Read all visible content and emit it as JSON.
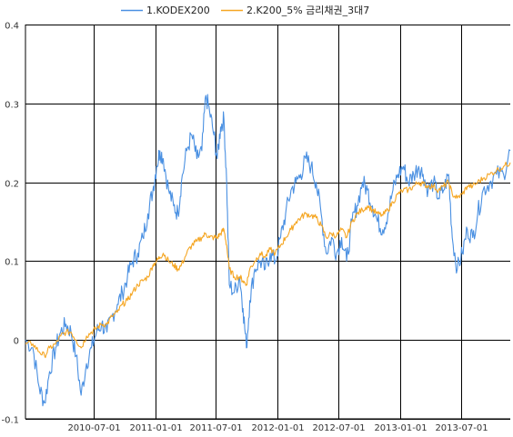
{
  "chart_data": {
    "type": "line",
    "grid": true,
    "legend_placement": "top-center",
    "ylim": [
      -0.1,
      0.4
    ],
    "xlim": [
      "2009-12-10",
      "2013-11-25"
    ],
    "yticks": [
      {
        "value": 0.4,
        "label": "0.4"
      },
      {
        "value": 0.3,
        "label": "0.3"
      },
      {
        "value": 0.2,
        "label": "0.2"
      },
      {
        "value": 0.1,
        "label": "0.1"
      },
      {
        "value": 0.0,
        "label": "0"
      },
      {
        "value": -0.1,
        "label": "-0.1"
      }
    ],
    "xticks": [
      "2010-07-01",
      "2011-01-01",
      "2011-07-01",
      "2012-01-01",
      "2012-07-01",
      "2013-01-01",
      "2013-07-01"
    ],
    "series": [
      {
        "name": "1.KODEX200",
        "color": "#4a90e2",
        "points": [
          [
            "2009-12-10",
            0.0
          ],
          [
            "2010-01-01",
            -0.01
          ],
          [
            "2010-01-20",
            -0.06
          ],
          [
            "2010-02-05",
            -0.08
          ],
          [
            "2010-02-20",
            -0.04
          ],
          [
            "2010-03-10",
            -0.01
          ],
          [
            "2010-03-25",
            0.01
          ],
          [
            "2010-04-10",
            0.02
          ],
          [
            "2010-04-25",
            0.01
          ],
          [
            "2010-05-10",
            -0.02
          ],
          [
            "2010-05-25",
            -0.07
          ],
          [
            "2010-06-10",
            -0.03
          ],
          [
            "2010-06-25",
            -0.01
          ],
          [
            "2010-07-10",
            0.01
          ],
          [
            "2010-07-25",
            0.02
          ],
          [
            "2010-08-10",
            0.01
          ],
          [
            "2010-08-25",
            0.03
          ],
          [
            "2010-09-10",
            0.045
          ],
          [
            "2010-09-25",
            0.06
          ],
          [
            "2010-10-10",
            0.08
          ],
          [
            "2010-10-25",
            0.1
          ],
          [
            "2010-11-10",
            0.11
          ],
          [
            "2010-11-25",
            0.13
          ],
          [
            "2010-12-10",
            0.16
          ],
          [
            "2010-12-25",
            0.19
          ],
          [
            "2011-01-05",
            0.22
          ],
          [
            "2011-01-15",
            0.24
          ],
          [
            "2011-01-25",
            0.23
          ],
          [
            "2011-02-10",
            0.19
          ],
          [
            "2011-02-25",
            0.17
          ],
          [
            "2011-03-10",
            0.16
          ],
          [
            "2011-03-20",
            0.2
          ],
          [
            "2011-04-05",
            0.24
          ],
          [
            "2011-04-20",
            0.26
          ],
          [
            "2011-05-05",
            0.23
          ],
          [
            "2011-05-20",
            0.24
          ],
          [
            "2011-06-01",
            0.31
          ],
          [
            "2011-06-12",
            0.29
          ],
          [
            "2011-06-25",
            0.26
          ],
          [
            "2011-07-05",
            0.23
          ],
          [
            "2011-07-15",
            0.27
          ],
          [
            "2011-07-25",
            0.28
          ],
          [
            "2011-08-02",
            0.2
          ],
          [
            "2011-08-10",
            0.07
          ],
          [
            "2011-08-25",
            0.06
          ],
          [
            "2011-09-10",
            0.08
          ],
          [
            "2011-09-20",
            0.04
          ],
          [
            "2011-09-30",
            -0.01
          ],
          [
            "2011-10-10",
            0.05
          ],
          [
            "2011-10-25",
            0.09
          ],
          [
            "2011-11-10",
            0.1
          ],
          [
            "2011-11-25",
            0.09
          ],
          [
            "2011-12-10",
            0.11
          ],
          [
            "2011-12-25",
            0.1
          ],
          [
            "2012-01-10",
            0.13
          ],
          [
            "2012-01-25",
            0.16
          ],
          [
            "2012-02-10",
            0.19
          ],
          [
            "2012-02-25",
            0.2
          ],
          [
            "2012-03-10",
            0.21
          ],
          [
            "2012-03-25",
            0.23
          ],
          [
            "2012-04-10",
            0.22
          ],
          [
            "2012-04-25",
            0.2
          ],
          [
            "2012-05-10",
            0.16
          ],
          [
            "2012-05-25",
            0.11
          ],
          [
            "2012-06-10",
            0.13
          ],
          [
            "2012-06-25",
            0.11
          ],
          [
            "2012-07-10",
            0.13
          ],
          [
            "2012-07-25",
            0.1
          ],
          [
            "2012-08-10",
            0.15
          ],
          [
            "2012-08-25",
            0.17
          ],
          [
            "2012-09-10",
            0.2
          ],
          [
            "2012-09-25",
            0.19
          ],
          [
            "2012-10-10",
            0.17
          ],
          [
            "2012-10-25",
            0.15
          ],
          [
            "2012-11-10",
            0.14
          ],
          [
            "2012-11-25",
            0.16
          ],
          [
            "2012-12-10",
            0.19
          ],
          [
            "2012-12-25",
            0.21
          ],
          [
            "2013-01-10",
            0.22
          ],
          [
            "2013-01-25",
            0.2
          ],
          [
            "2013-02-10",
            0.21
          ],
          [
            "2013-02-25",
            0.22
          ],
          [
            "2013-03-10",
            0.21
          ],
          [
            "2013-03-25",
            0.19
          ],
          [
            "2013-04-10",
            0.2
          ],
          [
            "2013-04-25",
            0.18
          ],
          [
            "2013-05-10",
            0.19
          ],
          [
            "2013-05-25",
            0.21
          ],
          [
            "2013-06-05",
            0.13
          ],
          [
            "2013-06-20",
            0.09
          ],
          [
            "2013-07-05",
            0.11
          ],
          [
            "2013-07-20",
            0.14
          ],
          [
            "2013-08-05",
            0.13
          ],
          [
            "2013-08-20",
            0.16
          ],
          [
            "2013-09-05",
            0.19
          ],
          [
            "2013-09-25",
            0.2
          ],
          [
            "2013-10-15",
            0.21
          ],
          [
            "2013-11-05",
            0.21
          ],
          [
            "2013-11-25",
            0.24
          ]
        ]
      },
      {
        "name": "2.K200_5% 금리채권_3대7",
        "color": "#f5a623",
        "points": [
          [
            "2009-12-10",
            -0.005
          ],
          [
            "2010-01-01",
            -0.005
          ],
          [
            "2010-01-20",
            -0.015
          ],
          [
            "2010-02-05",
            -0.02
          ],
          [
            "2010-02-20",
            -0.01
          ],
          [
            "2010-03-10",
            -0.005
          ],
          [
            "2010-03-25",
            0.005
          ],
          [
            "2010-04-10",
            0.01
          ],
          [
            "2010-04-25",
            0.01
          ],
          [
            "2010-05-10",
            0.0
          ],
          [
            "2010-05-25",
            -0.01
          ],
          [
            "2010-06-10",
            0.005
          ],
          [
            "2010-06-25",
            0.01
          ],
          [
            "2010-07-10",
            0.015
          ],
          [
            "2010-07-25",
            0.02
          ],
          [
            "2010-08-10",
            0.02
          ],
          [
            "2010-08-25",
            0.03
          ],
          [
            "2010-09-10",
            0.035
          ],
          [
            "2010-09-25",
            0.045
          ],
          [
            "2010-10-10",
            0.05
          ],
          [
            "2010-10-25",
            0.06
          ],
          [
            "2010-11-10",
            0.07
          ],
          [
            "2010-11-25",
            0.075
          ],
          [
            "2010-12-10",
            0.08
          ],
          [
            "2010-12-25",
            0.095
          ],
          [
            "2011-01-05",
            0.1
          ],
          [
            "2011-01-15",
            0.105
          ],
          [
            "2011-01-25",
            0.11
          ],
          [
            "2011-02-10",
            0.1
          ],
          [
            "2011-02-25",
            0.095
          ],
          [
            "2011-03-10",
            0.09
          ],
          [
            "2011-03-20",
            0.095
          ],
          [
            "2011-04-05",
            0.11
          ],
          [
            "2011-04-20",
            0.12
          ],
          [
            "2011-05-05",
            0.125
          ],
          [
            "2011-05-20",
            0.13
          ],
          [
            "2011-06-01",
            0.135
          ],
          [
            "2011-06-12",
            0.13
          ],
          [
            "2011-06-25",
            0.13
          ],
          [
            "2011-07-05",
            0.13
          ],
          [
            "2011-07-15",
            0.135
          ],
          [
            "2011-07-25",
            0.14
          ],
          [
            "2011-08-02",
            0.12
          ],
          [
            "2011-08-10",
            0.09
          ],
          [
            "2011-08-25",
            0.08
          ],
          [
            "2011-09-10",
            0.08
          ],
          [
            "2011-09-20",
            0.075
          ],
          [
            "2011-09-30",
            0.07
          ],
          [
            "2011-10-10",
            0.09
          ],
          [
            "2011-10-25",
            0.1
          ],
          [
            "2011-11-10",
            0.11
          ],
          [
            "2011-11-25",
            0.105
          ],
          [
            "2011-12-10",
            0.115
          ],
          [
            "2011-12-25",
            0.11
          ],
          [
            "2012-01-10",
            0.12
          ],
          [
            "2012-01-25",
            0.13
          ],
          [
            "2012-02-10",
            0.14
          ],
          [
            "2012-02-25",
            0.15
          ],
          [
            "2012-03-10",
            0.155
          ],
          [
            "2012-03-25",
            0.16
          ],
          [
            "2012-04-10",
            0.158
          ],
          [
            "2012-04-25",
            0.155
          ],
          [
            "2012-05-10",
            0.145
          ],
          [
            "2012-05-25",
            0.13
          ],
          [
            "2012-06-10",
            0.135
          ],
          [
            "2012-06-25",
            0.132
          ],
          [
            "2012-07-10",
            0.14
          ],
          [
            "2012-07-25",
            0.13
          ],
          [
            "2012-08-10",
            0.15
          ],
          [
            "2012-08-25",
            0.16
          ],
          [
            "2012-09-10",
            0.165
          ],
          [
            "2012-09-25",
            0.17
          ],
          [
            "2012-10-10",
            0.165
          ],
          [
            "2012-10-25",
            0.16
          ],
          [
            "2012-11-10",
            0.158
          ],
          [
            "2012-11-25",
            0.165
          ],
          [
            "2012-12-10",
            0.175
          ],
          [
            "2012-12-25",
            0.185
          ],
          [
            "2013-01-10",
            0.19
          ],
          [
            "2013-01-25",
            0.19
          ],
          [
            "2013-02-10",
            0.195
          ],
          [
            "2013-02-25",
            0.2
          ],
          [
            "2013-03-10",
            0.198
          ],
          [
            "2013-03-25",
            0.195
          ],
          [
            "2013-04-10",
            0.195
          ],
          [
            "2013-04-25",
            0.19
          ],
          [
            "2013-05-10",
            0.195
          ],
          [
            "2013-05-25",
            0.2
          ],
          [
            "2013-06-05",
            0.185
          ],
          [
            "2013-06-20",
            0.18
          ],
          [
            "2013-07-05",
            0.185
          ],
          [
            "2013-07-20",
            0.195
          ],
          [
            "2013-08-05",
            0.195
          ],
          [
            "2013-08-20",
            0.2
          ],
          [
            "2013-09-05",
            0.205
          ],
          [
            "2013-09-25",
            0.21
          ],
          [
            "2013-10-15",
            0.215
          ],
          [
            "2013-11-05",
            0.22
          ],
          [
            "2013-11-25",
            0.225
          ]
        ]
      }
    ]
  }
}
